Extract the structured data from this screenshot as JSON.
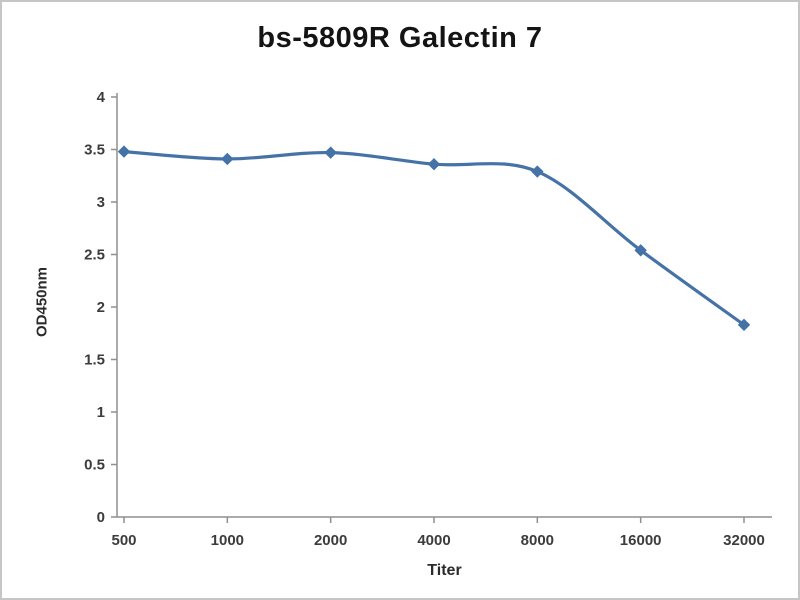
{
  "chart_data": {
    "type": "line",
    "title": "bs-5809R Galectin 7",
    "xlabel": "Titer",
    "ylabel": "OD450nm",
    "categories": [
      "500",
      "1000",
      "2000",
      "4000",
      "8000",
      "16000",
      "32000"
    ],
    "series": [
      {
        "name": "OD450nm",
        "values": [
          3.48,
          3.41,
          3.47,
          3.36,
          3.29,
          2.54,
          1.83
        ]
      }
    ],
    "ylim": [
      0,
      4
    ],
    "ytick_step": 0.5,
    "grid": false,
    "legend": "none",
    "line_color": "#4572a7",
    "marker_color": "#4572a7",
    "marker": "diamond",
    "axis_color": "#8f8f8f"
  }
}
